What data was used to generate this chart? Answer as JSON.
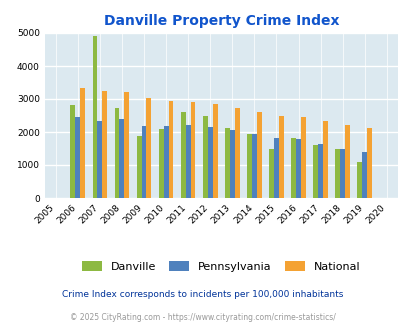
{
  "title": "Danville Property Crime Index",
  "years": [
    2005,
    2006,
    2007,
    2008,
    2009,
    2010,
    2011,
    2012,
    2013,
    2014,
    2015,
    2016,
    2017,
    2018,
    2019,
    2020
  ],
  "danville": [
    null,
    2820,
    4920,
    2720,
    1880,
    2080,
    2600,
    2480,
    2110,
    1930,
    1500,
    1820,
    1620,
    1470,
    1100,
    null
  ],
  "pennsylvania": [
    null,
    2450,
    2340,
    2400,
    2180,
    2180,
    2220,
    2160,
    2060,
    1950,
    1820,
    1780,
    1650,
    1470,
    1400,
    null
  ],
  "national": [
    null,
    3340,
    3250,
    3210,
    3040,
    2940,
    2910,
    2860,
    2720,
    2600,
    2490,
    2460,
    2340,
    2200,
    2130,
    null
  ],
  "bar_width": 0.22,
  "colors": {
    "danville": "#8db942",
    "pennsylvania": "#4f81bd",
    "national": "#f4a233"
  },
  "ylim": [
    0,
    5000
  ],
  "yticks": [
    0,
    1000,
    2000,
    3000,
    4000,
    5000
  ],
  "bg_color": "#dce9f0",
  "grid_color": "#ffffff",
  "title_color": "#1155cc",
  "title_fontsize": 10,
  "legend_labels": [
    "Danville",
    "Pennsylvania",
    "National"
  ],
  "footnote1": "Crime Index corresponds to incidents per 100,000 inhabitants",
  "footnote2": "© 2025 CityRating.com - https://www.cityrating.com/crime-statistics/",
  "footnote1_color": "#003399",
  "footnote2_color": "#999999"
}
